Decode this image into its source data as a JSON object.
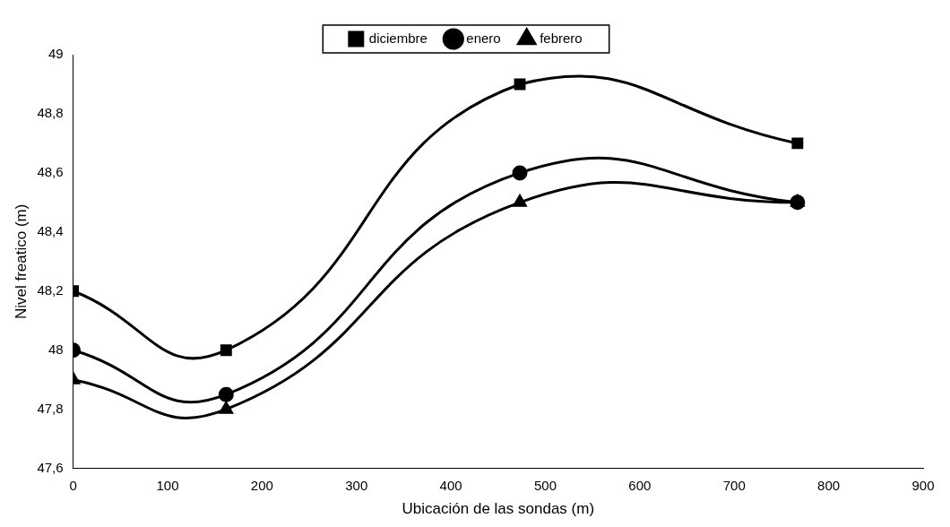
{
  "chart_data": {
    "type": "line",
    "xlabel": "Ubicación de las sondas (m)",
    "ylabel": "Nivel freatico (m)",
    "xlim": [
      0,
      900
    ],
    "xticks": [
      0,
      100,
      200,
      300,
      400,
      500,
      600,
      700,
      800,
      900
    ],
    "ylim": [
      47.6,
      49
    ],
    "yticks": [
      {
        "value": 47.6,
        "label": "47,6"
      },
      {
        "value": 47.8,
        "label": "47,8"
      },
      {
        "value": 48,
        "label": "48"
      },
      {
        "value": 48.2,
        "label": "48,2"
      },
      {
        "value": 48.4,
        "label": "48,4"
      },
      {
        "value": 48.6,
        "label": "48,6"
      },
      {
        "value": 48.8,
        "label": "48,8"
      },
      {
        "value": 49,
        "label": "49"
      }
    ],
    "x": [
      0,
      162,
      473,
      767
    ],
    "series": [
      {
        "name": "diciembre",
        "color": "#000000",
        "marker": "square",
        "values": [
          48.2,
          48.0,
          48.9,
          48.7
        ]
      },
      {
        "name": "enero",
        "color": "#000000",
        "marker": "circle",
        "values": [
          48.0,
          47.85,
          48.6,
          48.5
        ]
      },
      {
        "name": "febrero",
        "color": "#000000",
        "marker": "triangle",
        "values": [
          47.9,
          47.8,
          48.5,
          48.5
        ]
      }
    ],
    "grid": false,
    "legend": "top",
    "line_style": "solid"
  }
}
